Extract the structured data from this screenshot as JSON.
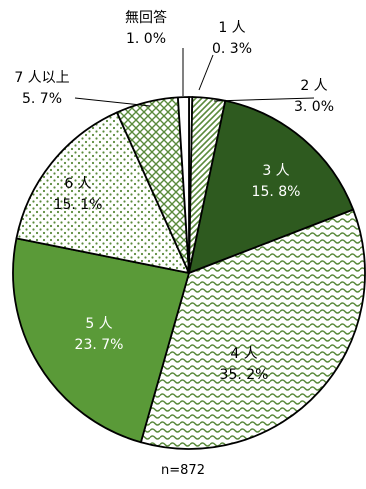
{
  "chart_data": {
    "type": "pie",
    "note": "n=872",
    "start": "top, clockwise",
    "slices": [
      {
        "name": "1人",
        "label": "1 人",
        "value": 0.3,
        "value_label": "0. 3%",
        "pattern": "solid",
        "color": "#ffffff"
      },
      {
        "name": "2人",
        "label": "2 人",
        "value": 3.0,
        "value_label": "3. 0%",
        "pattern": "diagonal-hatch",
        "color": "#5a8a3c"
      },
      {
        "name": "3人",
        "label": "3 人",
        "value": 15.8,
        "value_label": "15. 8%",
        "pattern": "solid",
        "color": "#2e5a1f"
      },
      {
        "name": "4人",
        "label": "4 人",
        "value": 35.2,
        "value_label": "35. 2%",
        "pattern": "wave",
        "color": "#5a8a3c"
      },
      {
        "name": "5人",
        "label": "5 人",
        "value": 23.7,
        "value_label": "23. 7%",
        "pattern": "solid",
        "color": "#5a9a38"
      },
      {
        "name": "6人",
        "label": "6 人",
        "value": 15.1,
        "value_label": "15. 1%",
        "pattern": "dots",
        "color": "#5a8a3c"
      },
      {
        "name": "7人以上",
        "label": "7 人以上",
        "value": 5.7,
        "value_label": "5. 7%",
        "pattern": "crosshatch",
        "color": "#5a8a3c"
      },
      {
        "name": "無回答",
        "label": "無回答",
        "value": 1.0,
        "value_label": "1. 0%",
        "pattern": "solid",
        "color": "#ffffff"
      }
    ]
  }
}
